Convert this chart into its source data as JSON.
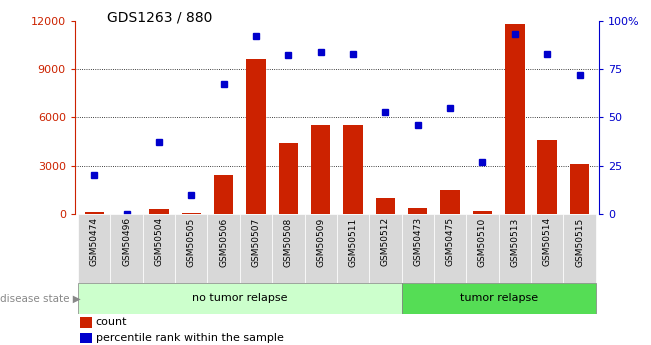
{
  "title": "GDS1263 / 880",
  "samples": [
    "GSM50474",
    "GSM50496",
    "GSM50504",
    "GSM50505",
    "GSM50506",
    "GSM50507",
    "GSM50508",
    "GSM50509",
    "GSM50511",
    "GSM50512",
    "GSM50473",
    "GSM50475",
    "GSM50510",
    "GSM50513",
    "GSM50514",
    "GSM50515"
  ],
  "counts": [
    100,
    0,
    300,
    50,
    2400,
    9600,
    4400,
    5500,
    5500,
    1000,
    350,
    1500,
    200,
    11800,
    4600,
    3100
  ],
  "percentiles": [
    20,
    0,
    37,
    10,
    67,
    92,
    82,
    84,
    83,
    53,
    46,
    55,
    27,
    93,
    83,
    72
  ],
  "no_tumor_count": 10,
  "ylim_left": [
    0,
    12000
  ],
  "ylim_right": [
    0,
    100
  ],
  "yticks_left": [
    0,
    3000,
    6000,
    9000,
    12000
  ],
  "yticks_right": [
    0,
    25,
    50,
    75,
    100
  ],
  "bar_color": "#cc2200",
  "dot_color": "#0000cc",
  "bg_color": "#d8d8d8",
  "no_tumor_color": "#ccffcc",
  "tumor_color": "#55dd55",
  "legend_count_label": "count",
  "legend_pct_label": "percentile rank within the sample",
  "disease_state_label": "disease state",
  "no_tumor_label": "no tumor relapse",
  "tumor_label": "tumor relapse"
}
